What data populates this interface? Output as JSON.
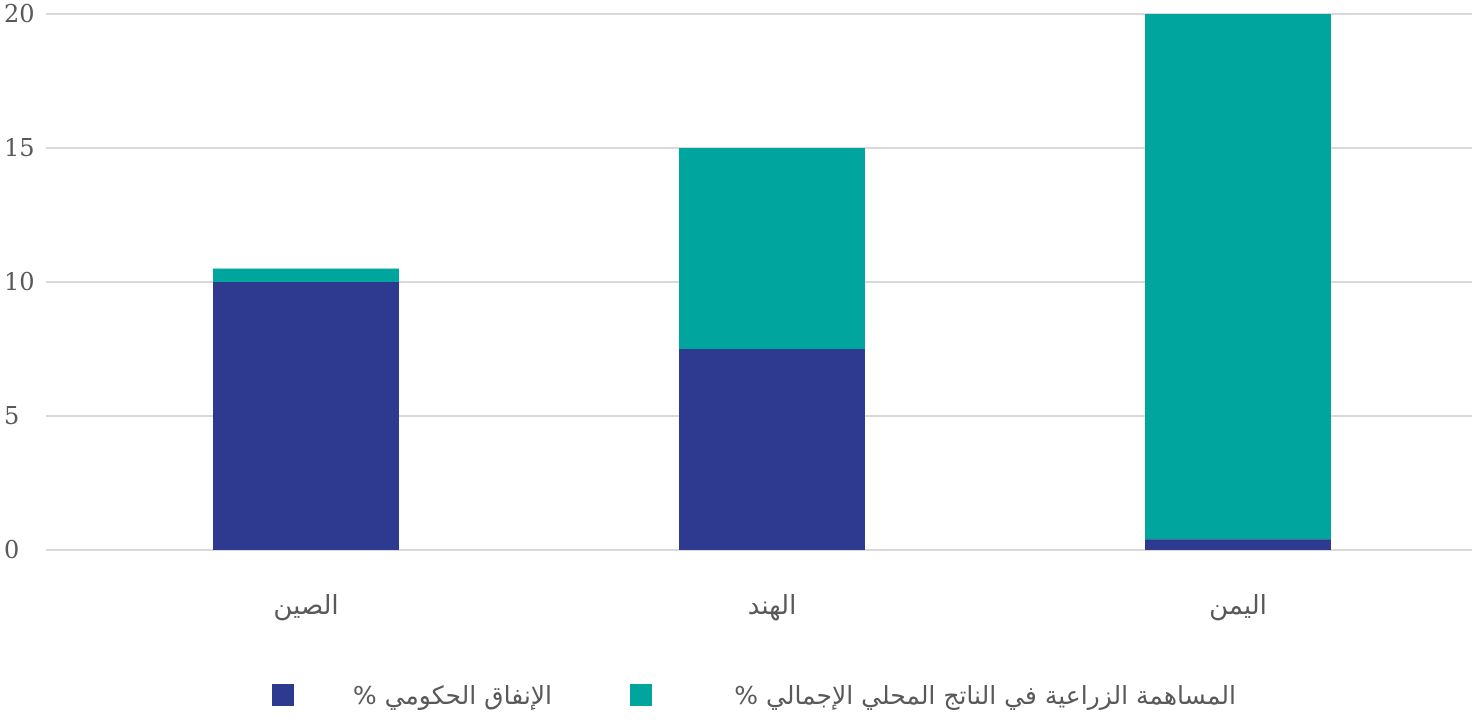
{
  "chart_data": {
    "type": "bar",
    "stacked": true,
    "title": "",
    "xlabel": "",
    "ylabel": "",
    "categories": [
      "الصين",
      "الهند",
      "اليمن"
    ],
    "series": [
      {
        "name": "الإنفاق الحكومي %",
        "color": "#2e3a8f",
        "values": [
          10,
          7.5,
          0.4
        ]
      },
      {
        "name": "المساهمة الزراعية في الناتج المحلي الإجمالي %",
        "color": "#00a59e",
        "values": [
          0.5,
          7.5,
          19.6
        ]
      }
    ],
    "ylim": [
      0,
      20
    ],
    "yticks": [
      "0",
      "5",
      "10",
      "15",
      "20"
    ],
    "grid": true,
    "legend_position": "bottom"
  }
}
